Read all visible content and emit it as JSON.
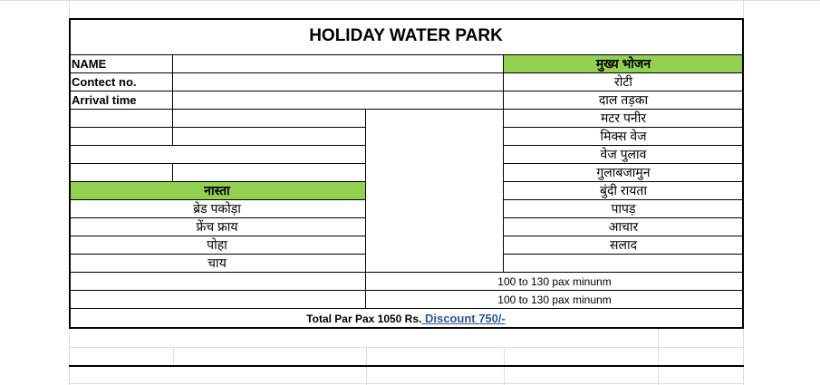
{
  "title": "HOLIDAY WATER PARK",
  "fields": {
    "name": "NAME",
    "contact": "Contect no.",
    "arrival": "Arrival time"
  },
  "main_meal": {
    "header": "मुख्य भोजन",
    "items": [
      "रोटी",
      "दाल तड़का",
      "मटर पनीर",
      "मिक्स वेज",
      "वेज पुलाव",
      "गुलाबजामुन",
      "बुंदी रायता",
      "पापड़",
      "आचार",
      "सलाद"
    ]
  },
  "breakfast": {
    "header": "नास्ता",
    "items": [
      "ब्रेड पकोड़ा",
      "फ्रेंच फ्राय",
      "पोहा",
      "चाय"
    ]
  },
  "pax_notes": [
    "100 to 130 pax minunm",
    "100 to 130 pax minunm"
  ],
  "total": {
    "text": "Total Par Pax 1050 Rs.",
    "discount": " Discount 750/-"
  },
  "colors": {
    "header_green": "#92d050",
    "link_blue": "#2f5597"
  }
}
